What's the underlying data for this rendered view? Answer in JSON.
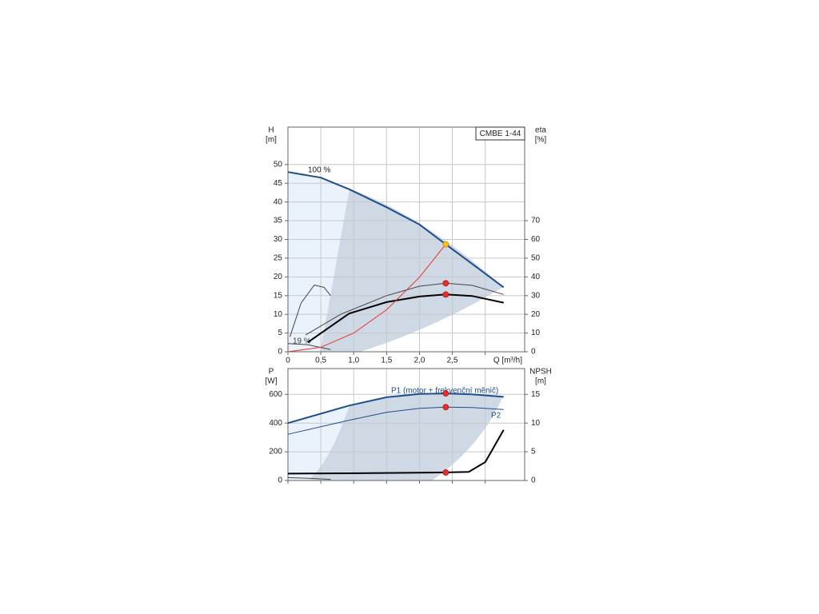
{
  "chart_data": [
    {
      "type": "line",
      "title": "CMBE 1-44",
      "ylabel": "H",
      "yunit": "[m]",
      "y2label": "eta",
      "y2unit": "[%]",
      "xlabel": "Q [m³/h]",
      "xlim": [
        0,
        3.6
      ],
      "xticks": [
        0,
        {
          "value": 0.5,
          "label": "0,5"
        },
        {
          "value": 1.0,
          "label": "1,0"
        },
        {
          "value": 1.5,
          "label": "1,5"
        },
        {
          "value": 2.0,
          "label": "2,0"
        },
        {
          "value": 2.5,
          "label": "2,5"
        },
        {
          "value": 3.0,
          "label": null
        }
      ],
      "ylim": [
        0,
        60
      ],
      "yticks": [
        0,
        5,
        10,
        15,
        20,
        25,
        30,
        35,
        40,
        45,
        50
      ],
      "y2lim": [
        0,
        120
      ],
      "y2ticks": [
        0,
        10,
        20,
        30,
        40,
        50,
        60,
        70
      ],
      "grid": true,
      "series": [
        {
          "name": "100 %",
          "color": "#1f4e8c",
          "width": 2,
          "x": [
            0,
            0.5,
            0.93,
            1.5,
            2.0,
            2.4,
            2.8,
            3.28
          ],
          "values": [
            48,
            46.5,
            43.4,
            38.6,
            34,
            28.7,
            23.5,
            17.2
          ]
        },
        {
          "name": "19 %",
          "color": "#444",
          "width": 1,
          "x": [
            0,
            0.3,
            0.65
          ],
          "values": [
            2.2,
            1.9,
            0.6
          ]
        },
        {
          "color": "#444",
          "width": 1,
          "x": [
            0.03,
            0.2,
            0.4,
            0.55,
            0.65
          ],
          "values": [
            4,
            13,
            17.8,
            17.2,
            15
          ]
        },
        {
          "color": "#444",
          "width": 1,
          "axis": "y2",
          "x": [
            0.27,
            0.8,
            1.5,
            2.0,
            2.4,
            2.8,
            3.28
          ],
          "values": [
            9,
            20,
            30,
            35,
            36.6,
            35.5,
            30.6
          ]
        },
        {
          "color": "#000",
          "width": 2,
          "axis": "y2",
          "x": [
            0.3,
            0.93,
            1.5,
            2.0,
            2.4,
            2.8,
            3.28
          ],
          "values": [
            5,
            20.4,
            26.5,
            29.5,
            30.6,
            29.8,
            26.2
          ]
        },
        {
          "color": "#e8302a",
          "width": 1,
          "x": [
            0,
            0.5,
            1.0,
            1.5,
            2.0,
            2.4
          ],
          "values": [
            0,
            1.2,
            5,
            11.2,
            19.9,
            28.7
          ]
        }
      ],
      "points": [
        {
          "x": 2.4,
          "y": 28.7,
          "color": "#f5c518"
        },
        {
          "x": 2.4,
          "y": 36.6,
          "axis": "y2",
          "color": "#e8302a"
        },
        {
          "x": 2.4,
          "y": 30.6,
          "axis": "y2",
          "color": "#e8302a"
        }
      ]
    },
    {
      "type": "line",
      "ylabel": "P",
      "yunit": "[W]",
      "y2label": "NPSH",
      "y2unit": "[m]",
      "xlim": [
        0,
        3.6
      ],
      "xticks": [
        0,
        0.5,
        1.0,
        1.5,
        2.0,
        2.5,
        3.0
      ],
      "xtick_labels": false,
      "ylim": [
        0,
        780
      ],
      "yticks": [
        0,
        200,
        400,
        600
      ],
      "y2lim": [
        0,
        19.5
      ],
      "y2ticks": [
        0,
        5,
        10,
        15
      ],
      "grid": true,
      "series": [
        {
          "name": "P1 (motor + frekvenční měnič)",
          "color": "#1f4e8c",
          "width": 2,
          "x": [
            0,
            0.93,
            1.5,
            2.0,
            2.4,
            2.8,
            3.28
          ],
          "values": [
            400,
            522,
            580,
            603,
            607,
            600,
            583
          ]
        },
        {
          "name": "P2",
          "color": "#1f4e8c",
          "width": 1,
          "x": [
            0,
            0.93,
            1.5,
            2.0,
            2.4,
            2.8,
            3.28
          ],
          "values": [
            322,
            420,
            475,
            503,
            511,
            508,
            494
          ]
        },
        {
          "color": "#000",
          "width": 2,
          "axis": "y2",
          "x": [
            0,
            0.93,
            2.0,
            2.4,
            2.75,
            3.0,
            3.28
          ],
          "values": [
            1.2,
            1.25,
            1.35,
            1.4,
            1.5,
            3.2,
            8.8
          ]
        },
        {
          "color": "#444",
          "width": 1,
          "x": [
            0,
            0.33,
            0.65
          ],
          "values": [
            20,
            15,
            8
          ]
        }
      ],
      "points": [
        {
          "x": 2.4,
          "y": 607,
          "color": "#e8302a"
        },
        {
          "x": 2.4,
          "y": 511,
          "color": "#e8302a"
        },
        {
          "x": 2.4,
          "y": 1.4,
          "axis": "y2",
          "color": "#e8302a"
        }
      ]
    }
  ]
}
